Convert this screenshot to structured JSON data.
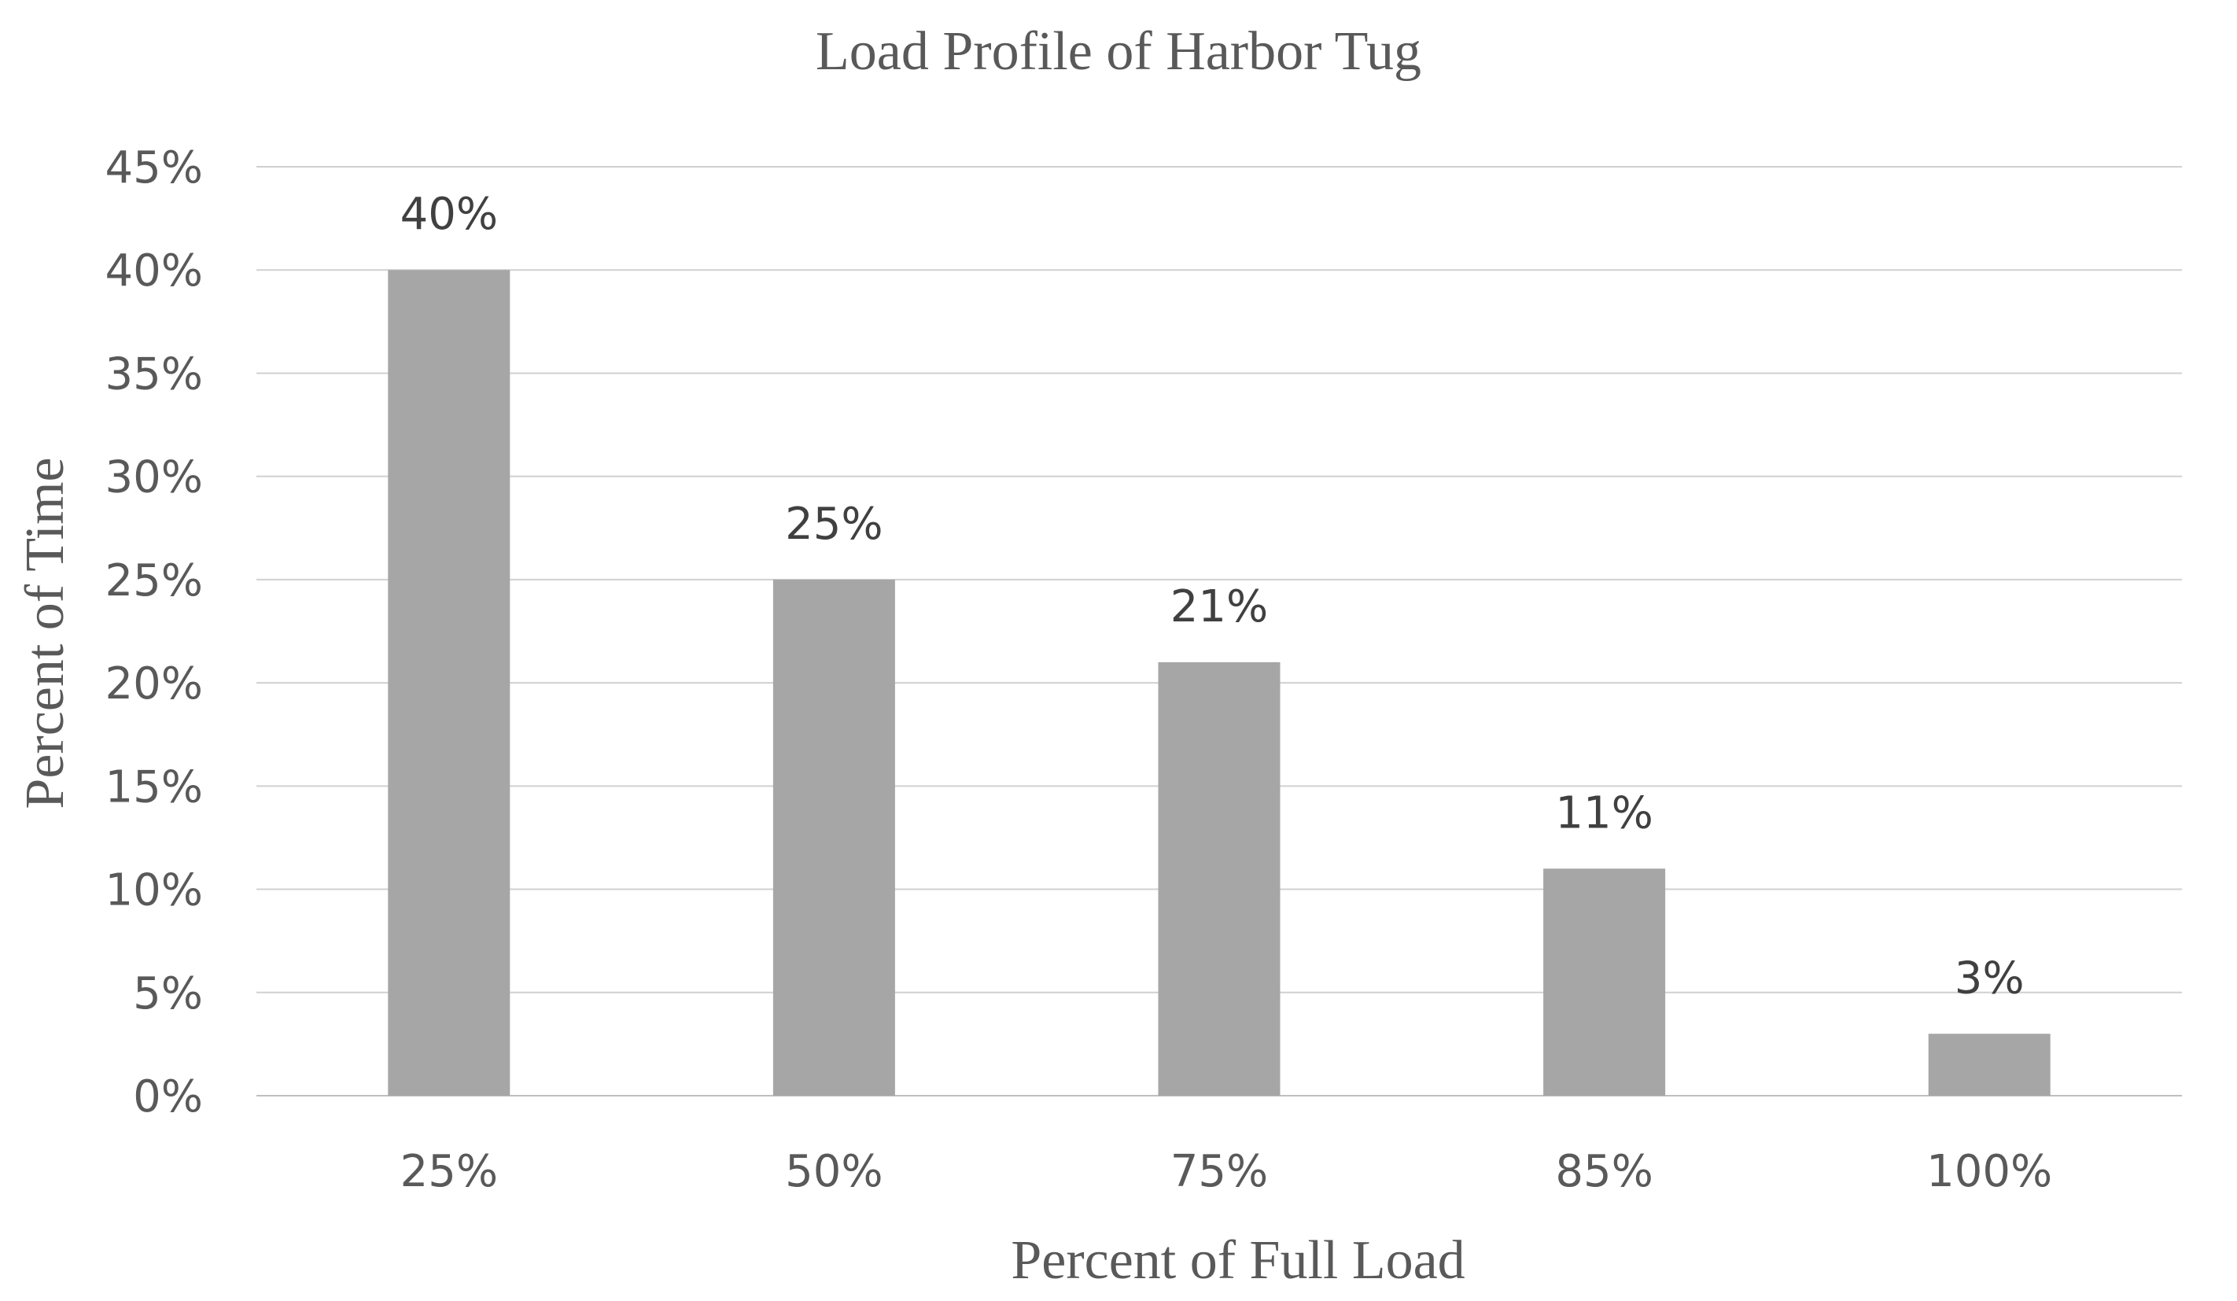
{
  "chart_data": {
    "type": "bar",
    "title": "Load Profile of Harbor Tug",
    "xlabel": "Percent of Full Load",
    "ylabel": "Percent of Time",
    "categories": [
      "25%",
      "50%",
      "75%",
      "85%",
      "100%"
    ],
    "values": [
      40,
      25,
      21,
      11,
      3
    ],
    "data_labels": [
      "40%",
      "25%",
      "21%",
      "11%",
      "3%"
    ],
    "y_ticks": [
      0,
      5,
      10,
      15,
      20,
      25,
      30,
      35,
      40,
      45
    ],
    "y_tick_labels": [
      "0%",
      "5%",
      "10%",
      "15%",
      "20%",
      "25%",
      "30%",
      "35%",
      "40%",
      "45%"
    ],
    "ylim": [
      0,
      45
    ],
    "grid": true,
    "legend": "none",
    "bar_color": "#a6a6a6"
  }
}
